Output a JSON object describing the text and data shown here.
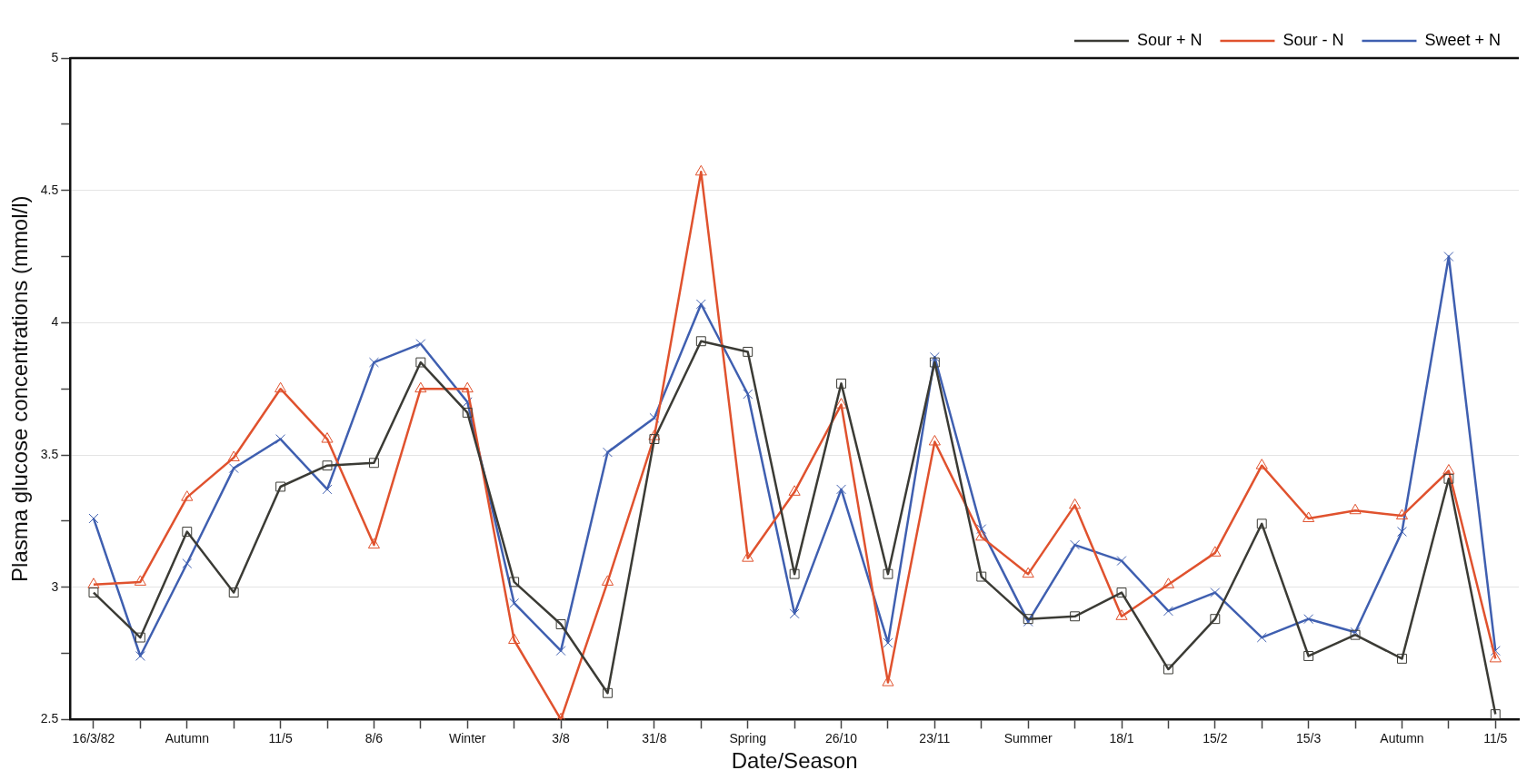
{
  "chart_data": {
    "type": "line",
    "xlabel": "Date/Season",
    "ylabel": "Plasma glucose concentrations (mmol/l)",
    "categories": [
      "16/3/82",
      null,
      "Autumn",
      null,
      "11/5",
      null,
      "8/6",
      null,
      "Winter",
      null,
      "3/8",
      null,
      "31/8",
      null,
      "Spring",
      null,
      "26/10",
      null,
      "23/11",
      null,
      "Summer",
      null,
      "18/1",
      null,
      "15/2",
      null,
      "15/3",
      null,
      "Autumn",
      null,
      "11/5"
    ],
    "series": [
      {
        "name": "Sour + N",
        "color": "#3b3b35",
        "marker": "square",
        "values": [
          2.98,
          2.81,
          3.21,
          2.98,
          3.38,
          3.46,
          3.47,
          3.85,
          3.66,
          3.02,
          2.86,
          2.6,
          3.56,
          3.93,
          3.89,
          3.05,
          3.77,
          3.05,
          3.85,
          3.04,
          2.88,
          2.89,
          2.98,
          2.69,
          2.88,
          3.24,
          2.74,
          2.82,
          2.73,
          3.41,
          2.52
        ]
      },
      {
        "name": "Sour - N",
        "color": "#e0522e",
        "marker": "triangle",
        "values": [
          3.01,
          3.02,
          3.34,
          3.49,
          3.75,
          3.56,
          3.16,
          3.75,
          3.75,
          2.8,
          2.5,
          3.02,
          3.57,
          4.57,
          3.11,
          3.36,
          3.69,
          2.64,
          3.55,
          3.19,
          3.05,
          3.31,
          2.89,
          3.01,
          3.13,
          3.46,
          3.26,
          3.29,
          3.27,
          3.44,
          2.73
        ]
      },
      {
        "name": "Sweet + N",
        "color": "#3f5fb0",
        "marker": "cross",
        "values": [
          3.26,
          2.74,
          3.09,
          3.45,
          3.56,
          3.37,
          3.85,
          3.92,
          3.7,
          2.94,
          2.76,
          3.51,
          3.64,
          4.07,
          3.73,
          2.9,
          3.37,
          2.79,
          3.87,
          3.22,
          2.87,
          3.16,
          3.1,
          2.91,
          2.98,
          2.81,
          2.88,
          2.83,
          3.21,
          4.25,
          2.76
        ]
      }
    ],
    "ylim": [
      2.5,
      5
    ],
    "yticks": [
      2.5,
      {
        "value": 2.75,
        "label": null
      },
      3,
      {
        "value": 3.25,
        "label": null
      },
      3.5,
      {
        "value": 3.75,
        "label": null
      },
      4,
      {
        "value": 4.25,
        "label": null
      },
      4.5,
      {
        "value": 4.75,
        "label": null
      },
      5
    ],
    "grid": "y",
    "legend": "top right",
    "line_style": "solid"
  }
}
